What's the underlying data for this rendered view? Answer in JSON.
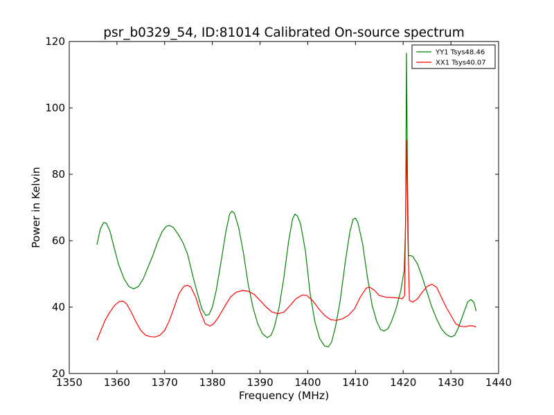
{
  "chart_data": {
    "type": "line",
    "title": "psr_b0329_54, ID:81014 Calibrated On-source spectrum",
    "xlabel": "Frequency (MHz)",
    "ylabel": "Power in Kelvin",
    "xlim": [
      1350,
      1440
    ],
    "ylim": [
      20,
      120
    ],
    "xticks": [
      1350,
      1360,
      1370,
      1380,
      1390,
      1400,
      1410,
      1420,
      1430,
      1440
    ],
    "yticks": [
      20,
      40,
      60,
      80,
      100,
      120
    ],
    "grid": false,
    "legend_position": "top-right",
    "series": [
      {
        "name": "YY1 Tsys48.46",
        "color": "#008000",
        "points": [
          [
            1355.8,
            58.8
          ],
          [
            1356.5,
            63.5
          ],
          [
            1357.2,
            65.5
          ],
          [
            1357.8,
            65.2
          ],
          [
            1358.5,
            63.0
          ],
          [
            1359.3,
            58.5
          ],
          [
            1360.3,
            53.0
          ],
          [
            1361.5,
            48.5
          ],
          [
            1362.5,
            46.2
          ],
          [
            1363.5,
            45.5
          ],
          [
            1364.5,
            46.2
          ],
          [
            1365.5,
            48.5
          ],
          [
            1366.5,
            52.0
          ],
          [
            1367.5,
            55.5
          ],
          [
            1368.5,
            59.5
          ],
          [
            1369.5,
            62.8
          ],
          [
            1370.3,
            64.3
          ],
          [
            1371.0,
            64.6
          ],
          [
            1371.8,
            64.0
          ],
          [
            1372.8,
            62.0
          ],
          [
            1373.8,
            59.5
          ],
          [
            1374.8,
            56.0
          ],
          [
            1375.8,
            50.0
          ],
          [
            1376.8,
            44.5
          ],
          [
            1377.8,
            39.5
          ],
          [
            1378.6,
            37.5
          ],
          [
            1379.3,
            37.8
          ],
          [
            1380.0,
            40.0
          ],
          [
            1380.8,
            45.0
          ],
          [
            1381.8,
            53.5
          ],
          [
            1382.8,
            62.5
          ],
          [
            1383.6,
            68.0
          ],
          [
            1384.1,
            68.9
          ],
          [
            1384.6,
            68.3
          ],
          [
            1385.5,
            64.0
          ],
          [
            1386.5,
            56.5
          ],
          [
            1387.5,
            47.0
          ],
          [
            1388.5,
            40.0
          ],
          [
            1389.5,
            35.0
          ],
          [
            1390.5,
            32.0
          ],
          [
            1391.5,
            30.8
          ],
          [
            1392.3,
            31.5
          ],
          [
            1393.0,
            34.0
          ],
          [
            1394.0,
            40.0
          ],
          [
            1395.0,
            49.0
          ],
          [
            1396.0,
            60.0
          ],
          [
            1396.8,
            66.5
          ],
          [
            1397.3,
            68.0
          ],
          [
            1397.8,
            67.5
          ],
          [
            1398.5,
            65.0
          ],
          [
            1399.5,
            57.0
          ],
          [
            1400.5,
            44.0
          ],
          [
            1401.5,
            35.5
          ],
          [
            1402.5,
            30.5
          ],
          [
            1403.5,
            28.3
          ],
          [
            1404.3,
            28.0
          ],
          [
            1405.0,
            29.5
          ],
          [
            1405.8,
            34.0
          ],
          [
            1406.8,
            42.0
          ],
          [
            1407.8,
            53.0
          ],
          [
            1408.8,
            62.5
          ],
          [
            1409.5,
            66.5
          ],
          [
            1410.0,
            66.8
          ],
          [
            1410.5,
            65.5
          ],
          [
            1411.5,
            59.0
          ],
          [
            1412.5,
            49.0
          ],
          [
            1413.5,
            40.5
          ],
          [
            1414.5,
            35.5
          ],
          [
            1415.3,
            33.2
          ],
          [
            1416.0,
            32.8
          ],
          [
            1416.8,
            33.5
          ],
          [
            1417.5,
            35.5
          ],
          [
            1418.5,
            39.5
          ],
          [
            1419.5,
            45.0
          ],
          [
            1420.2,
            51.0
          ],
          [
            1420.5,
            65.0
          ],
          [
            1420.7,
            116.5
          ],
          [
            1420.9,
            80.0
          ],
          [
            1421.1,
            55.5
          ],
          [
            1421.5,
            55.5
          ],
          [
            1422.0,
            55.3
          ],
          [
            1423.0,
            53.0
          ],
          [
            1424.0,
            49.0
          ],
          [
            1425.0,
            44.5
          ],
          [
            1426.0,
            40.0
          ],
          [
            1427.0,
            36.5
          ],
          [
            1428.0,
            33.5
          ],
          [
            1429.0,
            31.8
          ],
          [
            1430.0,
            31.0
          ],
          [
            1430.8,
            31.5
          ],
          [
            1431.5,
            33.5
          ],
          [
            1432.5,
            37.5
          ],
          [
            1433.5,
            41.5
          ],
          [
            1434.2,
            42.3
          ],
          [
            1434.8,
            41.5
          ],
          [
            1435.3,
            38.8
          ]
        ]
      },
      {
        "name": "XX1 Tsys40.07",
        "color": "#ff0000",
        "points": [
          [
            1355.8,
            30.0
          ],
          [
            1356.5,
            32.5
          ],
          [
            1357.5,
            36.0
          ],
          [
            1358.5,
            38.5
          ],
          [
            1359.5,
            40.5
          ],
          [
            1360.5,
            41.7
          ],
          [
            1361.3,
            41.8
          ],
          [
            1362.0,
            41.0
          ],
          [
            1363.0,
            38.5
          ],
          [
            1364.0,
            35.5
          ],
          [
            1365.0,
            33.0
          ],
          [
            1366.0,
            31.5
          ],
          [
            1367.0,
            31.1
          ],
          [
            1368.0,
            31.0
          ],
          [
            1369.0,
            31.5
          ],
          [
            1370.0,
            33.0
          ],
          [
            1371.0,
            36.0
          ],
          [
            1372.0,
            40.0
          ],
          [
            1373.0,
            44.0
          ],
          [
            1374.0,
            46.2
          ],
          [
            1374.8,
            46.6
          ],
          [
            1375.5,
            46.0
          ],
          [
            1376.5,
            43.0
          ],
          [
            1377.5,
            38.5
          ],
          [
            1378.5,
            35.0
          ],
          [
            1379.5,
            34.3
          ],
          [
            1380.3,
            35.0
          ],
          [
            1381.3,
            37.0
          ],
          [
            1382.5,
            40.0
          ],
          [
            1383.8,
            43.0
          ],
          [
            1385.0,
            44.5
          ],
          [
            1386.3,
            45.0
          ],
          [
            1387.5,
            44.8
          ],
          [
            1388.8,
            43.8
          ],
          [
            1390.0,
            42.0
          ],
          [
            1391.3,
            40.0
          ],
          [
            1392.5,
            38.5
          ],
          [
            1393.8,
            38.0
          ],
          [
            1395.0,
            38.5
          ],
          [
            1396.3,
            40.5
          ],
          [
            1397.5,
            42.5
          ],
          [
            1398.8,
            43.6
          ],
          [
            1399.8,
            43.5
          ],
          [
            1401.0,
            42.0
          ],
          [
            1402.3,
            39.5
          ],
          [
            1403.5,
            37.5
          ],
          [
            1404.8,
            36.2
          ],
          [
            1406.0,
            36.0
          ],
          [
            1407.3,
            36.5
          ],
          [
            1408.5,
            37.5
          ],
          [
            1409.8,
            39.5
          ],
          [
            1411.0,
            43.0
          ],
          [
            1412.3,
            45.8
          ],
          [
            1413.0,
            46.0
          ],
          [
            1414.0,
            45.0
          ],
          [
            1415.0,
            43.5
          ],
          [
            1416.3,
            43.0
          ],
          [
            1417.5,
            42.9
          ],
          [
            1418.8,
            42.8
          ],
          [
            1419.8,
            42.5
          ],
          [
            1420.3,
            43.5
          ],
          [
            1420.7,
            90.2
          ],
          [
            1421.0,
            60.0
          ],
          [
            1421.3,
            42.0
          ],
          [
            1422.0,
            41.5
          ],
          [
            1423.0,
            42.5
          ],
          [
            1424.0,
            44.5
          ],
          [
            1425.0,
            46.2
          ],
          [
            1426.0,
            46.9
          ],
          [
            1427.0,
            46.0
          ],
          [
            1428.0,
            43.0
          ],
          [
            1429.0,
            40.0
          ],
          [
            1430.0,
            37.5
          ],
          [
            1431.0,
            35.0
          ],
          [
            1432.0,
            34.2
          ],
          [
            1433.0,
            34.1
          ],
          [
            1434.0,
            34.4
          ],
          [
            1434.8,
            34.3
          ],
          [
            1435.3,
            34.0
          ]
        ]
      }
    ]
  }
}
